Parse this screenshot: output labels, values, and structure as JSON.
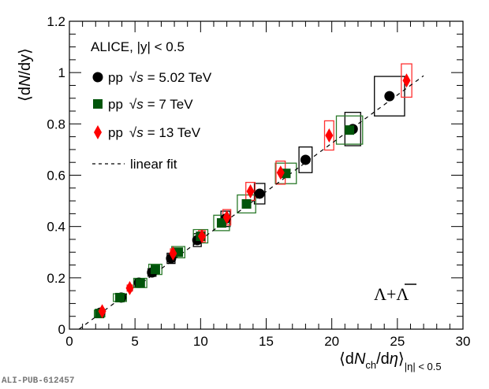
{
  "chart_data": {
    "type": "scatter",
    "title": "",
    "xlabel": "⟨dN_ch/dη⟩_|η| < 0.5",
    "ylabel": "⟨dN/dy⟩",
    "xlabel_parts": {
      "open": "⟨d",
      "N": "N",
      "sub": "ch",
      "mid": "/d",
      "eta": "η",
      "close": "⟩",
      "range": "|η| < 0.5"
    },
    "ylabel_parts": {
      "open": "⟨d",
      "N": "N",
      "rest": "/dy⟩"
    },
    "xlim": [
      0,
      30
    ],
    "ylim": [
      0,
      1.2
    ],
    "xticks": [
      "0",
      "5",
      "10",
      "15",
      "20",
      "25",
      "30"
    ],
    "xtick_values": [
      0,
      5,
      10,
      15,
      20,
      25,
      30
    ],
    "yticks": [
      "0",
      "0.2",
      "0.4",
      "0.6",
      "0.8",
      "1",
      "1.2"
    ],
    "ytick_values": [
      0,
      0.2,
      0.4,
      0.6,
      0.8,
      1.0,
      1.2
    ],
    "grid": false,
    "legend_placement": "top-left",
    "legend_header": "ALICE, |y| < 0.5",
    "particle_label": "Λ+Λ̄",
    "particle_parts": {
      "a": "Λ+",
      "b": "Λ"
    },
    "series": [
      {
        "name": "pp √s = 5.02 TeV",
        "legend_prefix": "pp",
        "legend_suffix": "= 5.02 TeV",
        "marker": "circle",
        "color": "#000000",
        "box_color": "#000000",
        "x": [
          2.35,
          3.95,
          5.3,
          6.3,
          7.75,
          9.75,
          11.9,
          14.5,
          18.0,
          21.6,
          24.4
        ],
        "y": [
          0.064,
          0.123,
          0.181,
          0.221,
          0.276,
          0.347,
          0.43,
          0.528,
          0.66,
          0.78,
          0.908
        ],
        "sys_x": [
          0.3,
          0.3,
          0.3,
          0.3,
          0.3,
          0.3,
          0.35,
          0.4,
          0.5,
          0.6,
          1.15
        ],
        "sys_y": [
          0.012,
          0.012,
          0.015,
          0.015,
          0.02,
          0.025,
          0.03,
          0.04,
          0.05,
          0.065,
          0.077
        ]
      },
      {
        "name": "pp √s = 7 TeV",
        "legend_prefix": "pp",
        "legend_suffix": "= 7 TeV",
        "marker": "square",
        "color": "#00550a",
        "box_color": "#2a7a2a",
        "x": [
          2.3,
          3.85,
          5.4,
          6.55,
          8.3,
          10.0,
          11.6,
          13.5,
          16.5,
          21.35
        ],
        "y": [
          0.061,
          0.123,
          0.18,
          0.233,
          0.3,
          0.362,
          0.414,
          0.488,
          0.607,
          0.776
        ],
        "sys_x": [
          0.4,
          0.5,
          0.5,
          0.5,
          0.5,
          0.55,
          0.6,
          0.7,
          0.8,
          1.0
        ],
        "sys_y": [
          0.013,
          0.015,
          0.018,
          0.02,
          0.022,
          0.026,
          0.03,
          0.035,
          0.04,
          0.055
        ]
      },
      {
        "name": "pp √s = 13 TeV",
        "legend_prefix": "pp",
        "legend_suffix": "= 13 TeV",
        "marker": "diamond",
        "color": "#ff0000",
        "box_color": "#ff3030",
        "x": [
          2.5,
          4.6,
          7.9,
          10.1,
          12.0,
          13.8,
          16.1,
          19.8,
          25.7
        ],
        "y": [
          0.07,
          0.16,
          0.295,
          0.362,
          0.436,
          0.537,
          0.61,
          0.755,
          0.969
        ],
        "sys_x": [
          0.15,
          0.2,
          0.2,
          0.25,
          0.3,
          0.35,
          0.35,
          0.35,
          0.4
        ],
        "sys_y": [
          0.01,
          0.012,
          0.018,
          0.022,
          0.03,
          0.035,
          0.045,
          0.057,
          0.065
        ]
      }
    ],
    "fit": {
      "name": "linear fit",
      "slope": 0.0376,
      "intercept": -0.0275,
      "x_range": [
        0.73,
        27.0
      ]
    }
  },
  "watermark": "ALI-PUB-612457",
  "sqrt_symbol": "√",
  "s_symbol": "s"
}
